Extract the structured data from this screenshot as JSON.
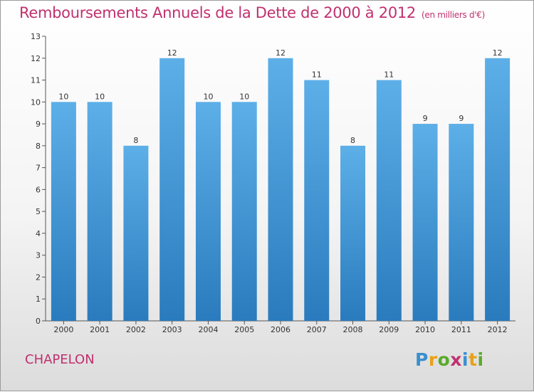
{
  "title": "Remboursements Annuels de la Dette de 2000 à 2012",
  "unit": "(en milliers d'€)",
  "commune": "CHAPELON",
  "brand": {
    "letters": [
      "P",
      "r",
      "o",
      "x",
      "i",
      "t",
      "i"
    ],
    "colors": [
      "#3a8fd0",
      "#e8a21a",
      "#5aaa2a",
      "#c0306f",
      "#3a8fd0",
      "#e8a21a",
      "#5aaa2a"
    ]
  },
  "colors": {
    "accent": "#c0306f",
    "bar_light": "#5dafe8",
    "bar_dark": "#2a7bbd"
  },
  "chart_data": {
    "type": "bar",
    "categories": [
      "2000",
      "2001",
      "2002",
      "2003",
      "2004",
      "2005",
      "2006",
      "2007",
      "2008",
      "2009",
      "2010",
      "2011",
      "2012"
    ],
    "values": [
      10,
      10,
      8,
      12,
      10,
      10,
      12,
      11,
      8,
      11,
      9,
      9,
      12
    ],
    "data_labels": [
      "10",
      "10",
      "8",
      "12",
      "10",
      "10",
      "12",
      "11",
      "8",
      "11",
      "9",
      "9",
      "12"
    ],
    "y_ticks": [
      "0",
      "1",
      "2",
      "3",
      "4",
      "5",
      "6",
      "7",
      "8",
      "9",
      "10",
      "11",
      "12",
      "13"
    ],
    "ylim": [
      0,
      13
    ],
    "grid": false,
    "legend": "none"
  }
}
